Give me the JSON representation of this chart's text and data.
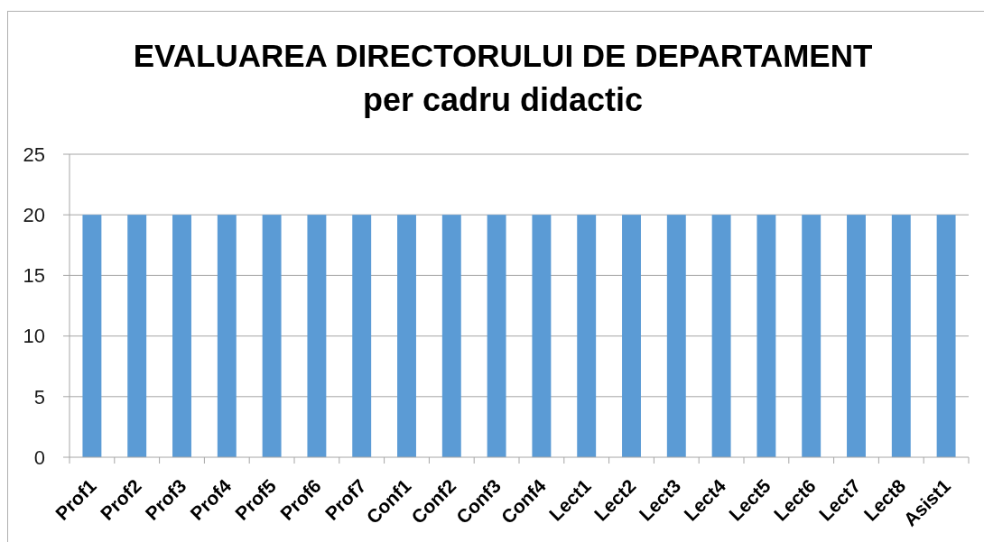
{
  "chart_data": {
    "type": "bar",
    "title": "EVALUAREA DIRECTORULUI DE DEPARTAMENT",
    "subtitle": "per cadru didactic",
    "categories": [
      "Prof1",
      "Prof2",
      "Prof3",
      "Prof4",
      "Prof5",
      "Prof6",
      "Prof7",
      "Conf1",
      "Conf2",
      "Conf3",
      "Conf4",
      "Lect1",
      "Lect2",
      "Lect3",
      "Lect4",
      "Lect5",
      "Lect6",
      "Lect7",
      "Lect8",
      "Asist1"
    ],
    "values": [
      20,
      20,
      20,
      20,
      20,
      20,
      20,
      20,
      20,
      20,
      20,
      20,
      20,
      20,
      20,
      20,
      20,
      20,
      20,
      20
    ],
    "color": "#5b9bd5",
    "ylim": [
      0,
      25
    ],
    "yticks": [
      0,
      5,
      10,
      15,
      20,
      25
    ],
    "grid": "y"
  }
}
